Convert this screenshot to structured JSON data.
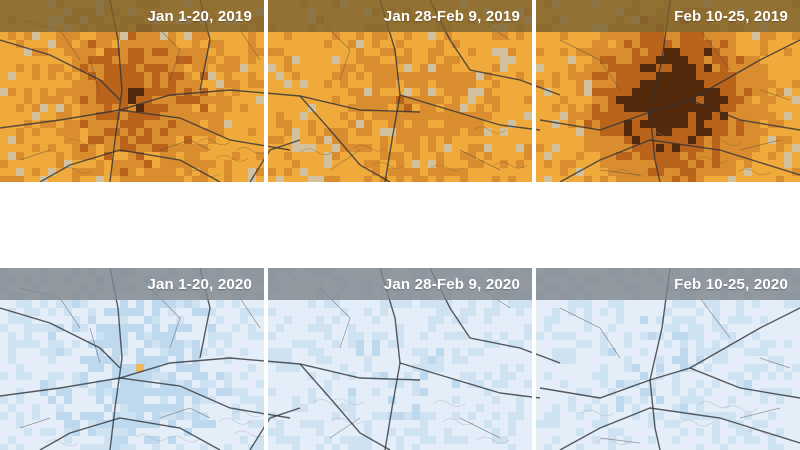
{
  "panels": [
    {
      "label": "Jan 1-20, 2019",
      "year": "2019",
      "hotspot": 0.55
    },
    {
      "label": "Jan 28-Feb 9, 2019",
      "year": "2019",
      "hotspot": 0.25
    },
    {
      "label": "Feb 10-25, 2019",
      "year": "2019",
      "hotspot": 0.95
    },
    {
      "label": "Jan 1-20, 2020",
      "year": "2020",
      "hotspot": 0.35
    },
    {
      "label": "Jan 28-Feb 9, 2020",
      "year": "2020",
      "hotspot": 0.1
    },
    {
      "label": "Feb 10-25, 2020",
      "year": "2020",
      "hotspot": 0.1
    }
  ],
  "colors": {
    "high": "#3a1305",
    "elevated": "#a84d12",
    "moderate": "#f0a93b",
    "low": "#b9d6ec",
    "very_low": "#e3eef8"
  }
}
